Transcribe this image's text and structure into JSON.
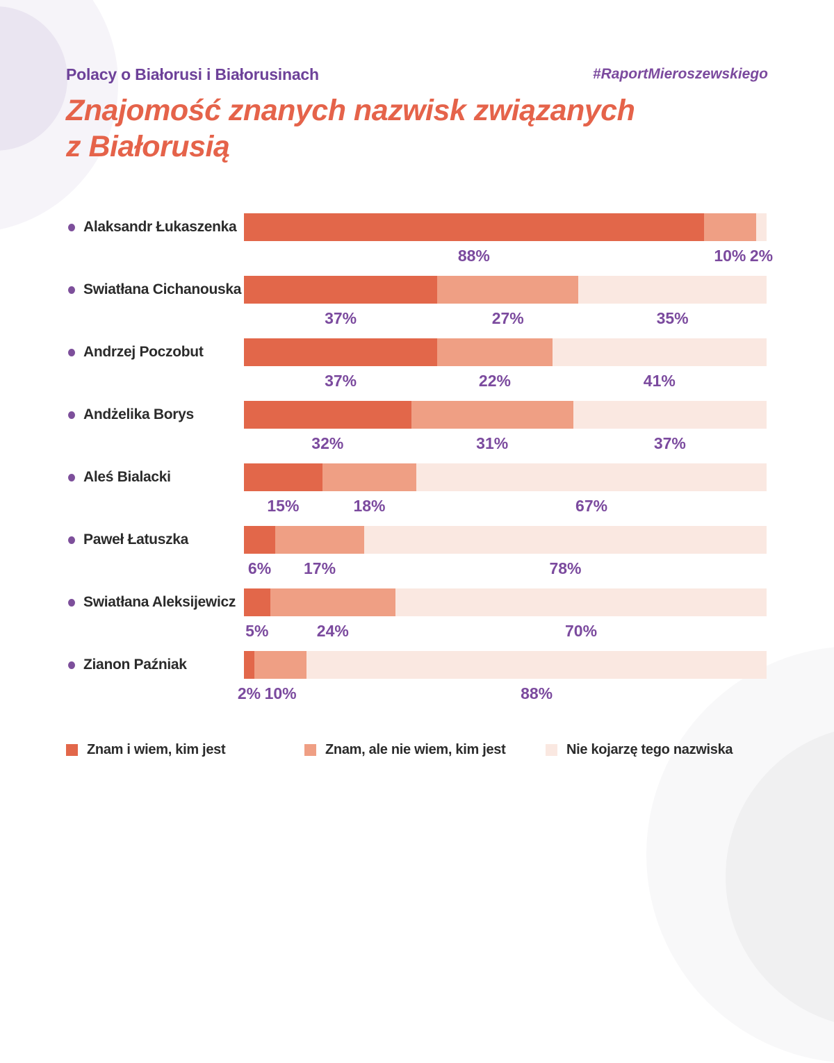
{
  "page": {
    "eyebrow": "Polacy o Białorusi i Białorusinach",
    "hashtag": "#RaportMieroszewskiego",
    "title": "Znajomość znanych nazwisk związanych\nz Białorusią"
  },
  "chart_data": {
    "type": "bar",
    "orientation": "horizontal",
    "stacked": true,
    "unit": "%",
    "xlim": [
      0,
      100
    ],
    "grid": false,
    "legend_position": "bottom",
    "value_label_style": "percent labels below each segment, purple bold",
    "categories": [
      "Alaksandr Łukaszenka",
      "Swiatłana Cichanouska",
      "Andrzej Poczobut",
      "Andżelika Borys",
      "Aleś Bialacki",
      "Paweł Łatuszka",
      "Swiatłana Aleksijewicz",
      "Zianon Paźniak"
    ],
    "series": [
      {
        "name": "Znam i wiem, kim jest",
        "color": "#e2674a",
        "values": [
          88,
          37,
          37,
          32,
          15,
          6,
          5,
          2
        ]
      },
      {
        "name": "Znam, ale nie wiem, kim jest",
        "color": "#ef9f84",
        "values": [
          10,
          27,
          22,
          31,
          18,
          17,
          24,
          10
        ]
      },
      {
        "name": "Nie kojarzę tego nazwiska",
        "color": "#fae8e1",
        "values": [
          2,
          35,
          41,
          37,
          67,
          78,
          70,
          88
        ]
      }
    ]
  },
  "colors": {
    "title_orange": "#e5634a",
    "heading_purple": "#6d4199",
    "value_label_purple": "#7b4a9e",
    "bullet_purple": "#7d4f9b",
    "text_dark": "#2b2b2b",
    "circle_lavender_outer": "#f6f4f9",
    "circle_lavender_inner": "#eae5f1",
    "circle_gray_outer": "#f8f8f9",
    "circle_gray_inner": "#f0f0f1"
  }
}
